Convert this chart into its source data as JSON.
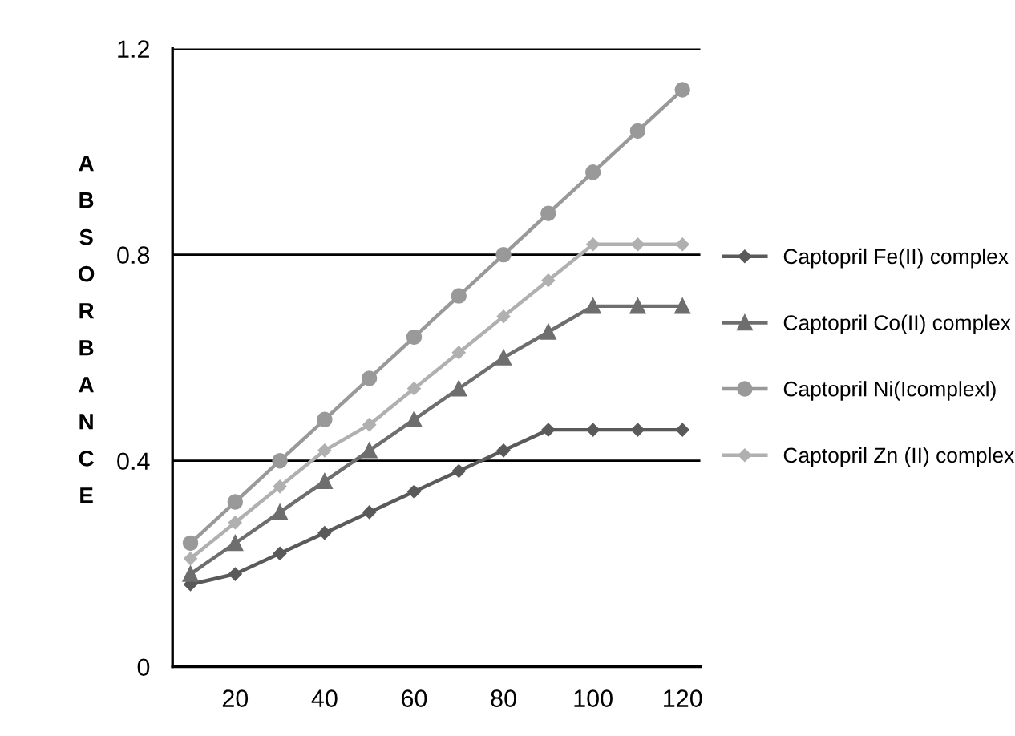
{
  "chart_data": {
    "type": "line",
    "ylabel": "ABSORBANCE",
    "x": [
      10,
      20,
      30,
      40,
      50,
      60,
      70,
      80,
      90,
      100,
      110,
      120
    ],
    "xlim": [
      6,
      124
    ],
    "xticks": [
      20,
      40,
      60,
      80,
      100,
      120
    ],
    "ylim": [
      0,
      1.2
    ],
    "yticks": [
      0,
      0.4,
      0.8,
      1.2
    ],
    "grid": "y",
    "legend": "right",
    "series": [
      {
        "name": "Captopril Fe(II) complex",
        "color": "#5a5a5a",
        "marker": "diamond",
        "values": [
          0.16,
          0.18,
          0.22,
          0.26,
          0.3,
          0.34,
          0.38,
          0.42,
          0.46,
          0.46,
          0.46,
          0.46
        ]
      },
      {
        "name": "Captopril Co(II) complex",
        "color": "#6e6e6e",
        "marker": "triangle",
        "values": [
          0.18,
          0.24,
          0.3,
          0.36,
          0.42,
          0.48,
          0.54,
          0.6,
          0.65,
          0.7,
          0.7,
          0.7
        ]
      },
      {
        "name": "Captopril Ni(Icomplexl)",
        "color": "#999999",
        "marker": "circle",
        "values": [
          0.24,
          0.32,
          0.4,
          0.48,
          0.56,
          0.64,
          0.72,
          0.8,
          0.88,
          0.96,
          1.04,
          1.12
        ]
      },
      {
        "name": "Captopril Zn (II) complex",
        "color": "#b0b0b0",
        "marker": "diamond",
        "values": [
          0.21,
          0.28,
          0.35,
          0.42,
          0.47,
          0.54,
          0.61,
          0.68,
          0.75,
          0.82,
          0.82,
          0.82
        ]
      }
    ]
  }
}
